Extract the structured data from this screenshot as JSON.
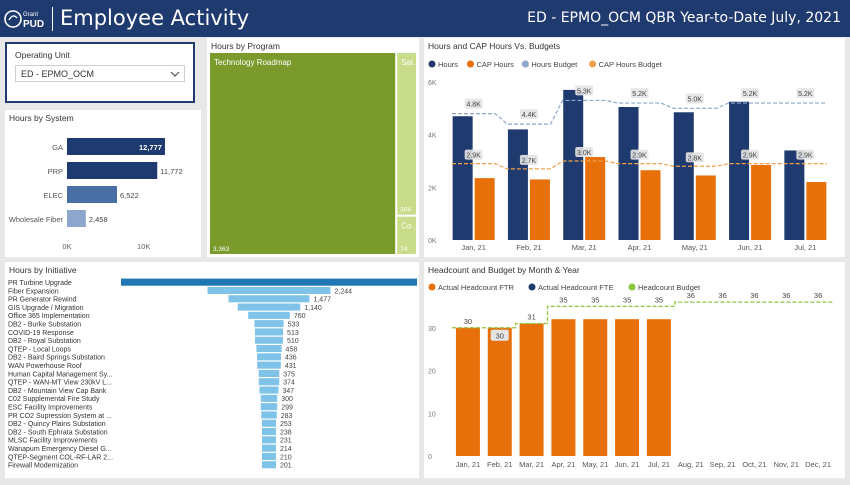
{
  "header": {
    "logo_text_top": "Grant",
    "logo_text_bottom": "PUD",
    "title": "Employee Activity",
    "report_title": "ED - EPMO_OCM QBR Year-to-Date July, 2021",
    "background": "#1f3a6e"
  },
  "slicer": {
    "label": "Operating Unit",
    "selected": "ED - EPMO_OCM",
    "icon": "chevron-down-icon"
  },
  "colors": {
    "navy": "#1f3a6e",
    "hours_system_bars": [
      "#1f3a6e",
      "#1f3a6e",
      "#4a6fa5",
      "#8fa6cc"
    ],
    "olive": "#7a9a2b",
    "lime": "#c8dc8a",
    "orange": "#e8700a",
    "slate_blue": "#8fa6cc",
    "initiative_top": "#1f77b4",
    "initiative_rest": "#7fc4e8",
    "headcount_budget": "#8dc63f"
  },
  "hours_by_system": {
    "title": "Hours by System",
    "chart_data": {
      "type": "bar",
      "orientation": "horizontal",
      "categories": [
        "GA",
        "PRP",
        "ELEC",
        "Wholesale Fiber"
      ],
      "values": [
        12777,
        11772,
        6522,
        2458
      ],
      "data_labels": [
        "12,777",
        "11,772",
        "6,522",
        "2,458"
      ],
      "x_ticks": [
        "0K",
        "10K"
      ],
      "xlim": [
        0,
        15000
      ]
    }
  },
  "hours_by_program": {
    "title": "Hours by Program",
    "chart_data": {
      "type": "treemap",
      "items": [
        {
          "name": "Technology Roadmap",
          "value": 3363,
          "label": "3,363"
        },
        {
          "name": "Sal...",
          "value": 304,
          "label": "304"
        },
        {
          "name": "Co...",
          "value": 74,
          "label": "74"
        }
      ]
    }
  },
  "hours_cap": {
    "title": "Hours and CAP Hours Vs. Budgets",
    "legend": [
      "Hours",
      "CAP Hours",
      "Hours Budget",
      "CAP Hours Budget"
    ],
    "chart_data": {
      "type": "bar",
      "categories": [
        "Jan, 21",
        "Feb, 21",
        "Mar, 21",
        "Apr, 21",
        "May, 21",
        "Jun, 21",
        "Jul, 21"
      ],
      "series": [
        {
          "name": "Hours",
          "kind": "bar",
          "values": [
            4700,
            4200,
            5700,
            5050,
            4850,
            5250,
            3400
          ]
        },
        {
          "name": "CAP Hours",
          "kind": "bar",
          "values": [
            2350,
            2300,
            3150,
            2650,
            2450,
            2850,
            2200
          ]
        },
        {
          "name": "Hours Budget",
          "kind": "step",
          "values": [
            4800,
            4400,
            5300,
            5200,
            5000,
            5200,
            5200
          ]
        },
        {
          "name": "CAP Hours Budget",
          "kind": "step",
          "values": [
            2900,
            2700,
            3000,
            2900,
            2800,
            2900,
            2900
          ]
        }
      ],
      "labels": {
        "hours_budget": [
          "4.8K",
          "4.4K",
          "5.3K",
          "5.2K",
          "5.0K",
          "5.2K",
          "5.2K"
        ],
        "cap_budget": [
          "2.9K",
          "2.7K",
          "3.0K",
          "2.9K",
          "2.8K",
          "2.9K",
          "2.9K"
        ]
      },
      "y_ticks": [
        "0K",
        "2K",
        "4K",
        "6K"
      ],
      "ylim": [
        0,
        6000
      ]
    }
  },
  "hours_by_initiative": {
    "title": "Hours by Initiative",
    "chart_data": {
      "type": "funnel",
      "categories": [
        "PR Turbine Upgrade",
        "Fiber Expansion",
        "PR Generator Rewind",
        "GIS Upgrade / Migration",
        "Office 365 Implementation",
        "DB2 - Burke Substation",
        "COVID-19 Response",
        "DB2 - Royal Substation",
        "QTEP - Local Loops",
        "DB2 - Baird Springs Substation",
        "WAN Powerhouse Roof",
        "Human Capital Management Sy...",
        "QTEP - WAN-MT View 230kV L...",
        "DB2 - Mountain View Cap Bank",
        "C02 Supplemental Fire Study",
        "ESC Facility Improvements",
        "PR CO2 Supression System at ...",
        "DB2 - Quincy Plains Substation",
        "DB2 - South Ephrata Substation",
        "MLSC Facility Improvements",
        "Wanapum Emergency Diesel G...",
        "QTEP-Segment COL-RF-LAR 2...",
        "Firewall Modernization"
      ],
      "values": [
        5400,
        2244,
        1477,
        1140,
        760,
        533,
        513,
        510,
        458,
        436,
        431,
        375,
        374,
        347,
        300,
        299,
        283,
        253,
        238,
        231,
        214,
        210,
        201
      ],
      "data_labels": [
        "",
        "2,244",
        "1,477",
        "1,140",
        "760",
        "533",
        "513",
        "510",
        "458",
        "436",
        "431",
        "375",
        "374",
        "347",
        "300",
        "299",
        "283",
        "253",
        "238",
        "231",
        "214",
        "210",
        "201"
      ]
    }
  },
  "headcount": {
    "title": "Headcount and Budget by Month & Year",
    "legend": [
      "Actual Headcount FTR",
      "Actual Headcount FTE",
      "Headcount Budget"
    ],
    "chart_data": {
      "type": "bar",
      "categories": [
        "Jan, 21",
        "Feb, 21",
        "Mar, 21",
        "Apr, 21",
        "May, 21",
        "Jun, 21",
        "Jul, 21",
        "Aug, 21",
        "Sep, 21",
        "Oct, 21",
        "Nov, 21",
        "Dec, 21"
      ],
      "series": [
        {
          "name": "Actual Headcount FTR",
          "kind": "bar",
          "values": [
            30,
            30,
            31,
            32,
            32,
            32,
            32,
            null,
            null,
            null,
            null,
            null
          ]
        },
        {
          "name": "Headcount Budget",
          "kind": "step",
          "values": [
            30,
            30,
            31,
            35,
            35,
            35,
            35,
            36,
            36,
            36,
            36,
            36
          ]
        }
      ],
      "labels": {
        "budget": [
          "30",
          "30",
          "31",
          "35",
          "35",
          "35",
          "35",
          "36",
          "36",
          "36",
          "36",
          "36"
        ]
      },
      "y_ticks": [
        "0",
        "10",
        "20",
        "30"
      ],
      "ylim": [
        0,
        40
      ]
    }
  }
}
